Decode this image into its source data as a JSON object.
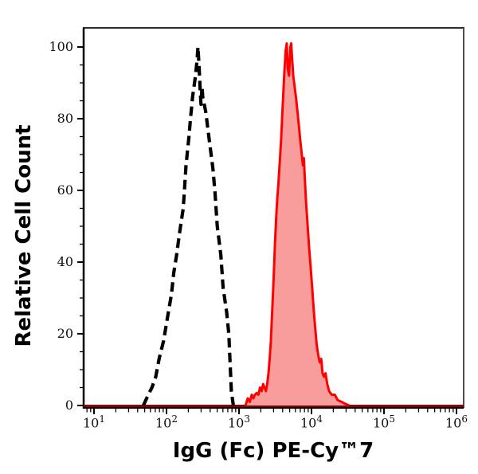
{
  "chart_data": {
    "type": "area",
    "chart_kind": "flow-cytometry-histogram",
    "title": "",
    "xlabel": "IgG (Fc) PE-Cy™7",
    "ylabel": "Relative Cell Count",
    "x_scale": "log10",
    "x_domain": [
      7,
      1250000
    ],
    "y_domain": [
      0,
      105
    ],
    "x_major_tick_exponents": [
      1,
      2,
      3,
      4,
      5,
      6
    ],
    "x_tick_base": "10",
    "y_major_ticks": [
      0,
      20,
      40,
      60,
      80,
      100
    ],
    "y_minor_step": 5,
    "grid": false,
    "legend": false,
    "axis_colors": {
      "frame_top": "#2e2e2e",
      "frame_right": "#4d4d4d",
      "frame_left": "#000000",
      "frame_bottom": "#000000",
      "ticks": "#000000"
    },
    "baseline_color": "#8b0000",
    "series": [
      {
        "name": "negative-control-dashed",
        "type": "line",
        "style": "dashed",
        "stroke": "#000000",
        "stroke_width": 4.2,
        "dash": [
          12,
          6.5
        ],
        "points": [
          [
            48,
            0
          ],
          [
            56,
            3
          ],
          [
            63,
            5
          ],
          [
            71,
            8
          ],
          [
            79,
            13
          ],
          [
            91,
            18
          ],
          [
            102,
            24
          ],
          [
            117,
            31
          ],
          [
            126,
            37
          ],
          [
            138,
            42
          ],
          [
            151,
            48
          ],
          [
            170,
            55
          ],
          [
            178,
            61
          ],
          [
            186,
            67
          ],
          [
            204,
            75
          ],
          [
            214,
            80
          ],
          [
            229,
            86
          ],
          [
            251,
            92
          ],
          [
            263,
            96
          ],
          [
            272,
            100
          ],
          [
            282,
            94
          ],
          [
            292,
            88
          ],
          [
            299,
            84
          ],
          [
            309,
            89
          ],
          [
            316,
            86
          ],
          [
            347,
            82
          ],
          [
            389,
            74
          ],
          [
            437,
            66
          ],
          [
            468,
            59
          ],
          [
            501,
            50
          ],
          [
            562,
            42
          ],
          [
            603,
            33
          ],
          [
            676,
            26
          ],
          [
            724,
            20
          ],
          [
            745,
            14
          ],
          [
            765,
            9
          ],
          [
            785,
            4
          ],
          [
            836,
            0
          ]
        ]
      },
      {
        "name": "pe-cy7-stained-filled",
        "type": "area",
        "style": "filled",
        "stroke": "#ff0000",
        "fill": "#f89c9c",
        "stroke_width": 3,
        "points": [
          [
            1230,
            0
          ],
          [
            1320,
            2
          ],
          [
            1410,
            1
          ],
          [
            1500,
            3
          ],
          [
            1580,
            2
          ],
          [
            1660,
            3
          ],
          [
            1750,
            3.5
          ],
          [
            1850,
            3
          ],
          [
            1950,
            5
          ],
          [
            2050,
            4
          ],
          [
            2150,
            6
          ],
          [
            2250,
            5
          ],
          [
            2350,
            4
          ],
          [
            2450,
            6
          ],
          [
            2550,
            9
          ],
          [
            2650,
            13
          ],
          [
            2750,
            18
          ],
          [
            2850,
            25
          ],
          [
            2950,
            32
          ],
          [
            3050,
            39
          ],
          [
            3150,
            46
          ],
          [
            3250,
            52
          ],
          [
            3350,
            57
          ],
          [
            3500,
            62
          ],
          [
            3650,
            68
          ],
          [
            3800,
            74
          ],
          [
            3950,
            81
          ],
          [
            4100,
            88
          ],
          [
            4250,
            94
          ],
          [
            4400,
            99
          ],
          [
            4550,
            101
          ],
          [
            4700,
            94
          ],
          [
            4900,
            92
          ],
          [
            5100,
            100
          ],
          [
            5250,
            101
          ],
          [
            5400,
            97
          ],
          [
            5600,
            92
          ],
          [
            5850,
            89
          ],
          [
            6100,
            86
          ],
          [
            6400,
            82
          ],
          [
            6700,
            78
          ],
          [
            7000,
            74
          ],
          [
            7350,
            70
          ],
          [
            7600,
            67
          ],
          [
            7850,
            69
          ],
          [
            8100,
            63
          ],
          [
            8400,
            57
          ],
          [
            8800,
            51
          ],
          [
            9200,
            45
          ],
          [
            9700,
            39
          ],
          [
            10200,
            33
          ],
          [
            10700,
            27
          ],
          [
            11200,
            22
          ],
          [
            11800,
            17
          ],
          [
            12400,
            14
          ],
          [
            13000,
            12
          ],
          [
            13600,
            13
          ],
          [
            14200,
            9
          ],
          [
            14900,
            8
          ],
          [
            15600,
            9
          ],
          [
            16500,
            6
          ],
          [
            17500,
            4
          ],
          [
            19000,
            3
          ],
          [
            21000,
            3
          ],
          [
            23000,
            1.5
          ],
          [
            26000,
            1
          ],
          [
            29000,
            0.5
          ],
          [
            33000,
            0
          ]
        ]
      }
    ]
  }
}
